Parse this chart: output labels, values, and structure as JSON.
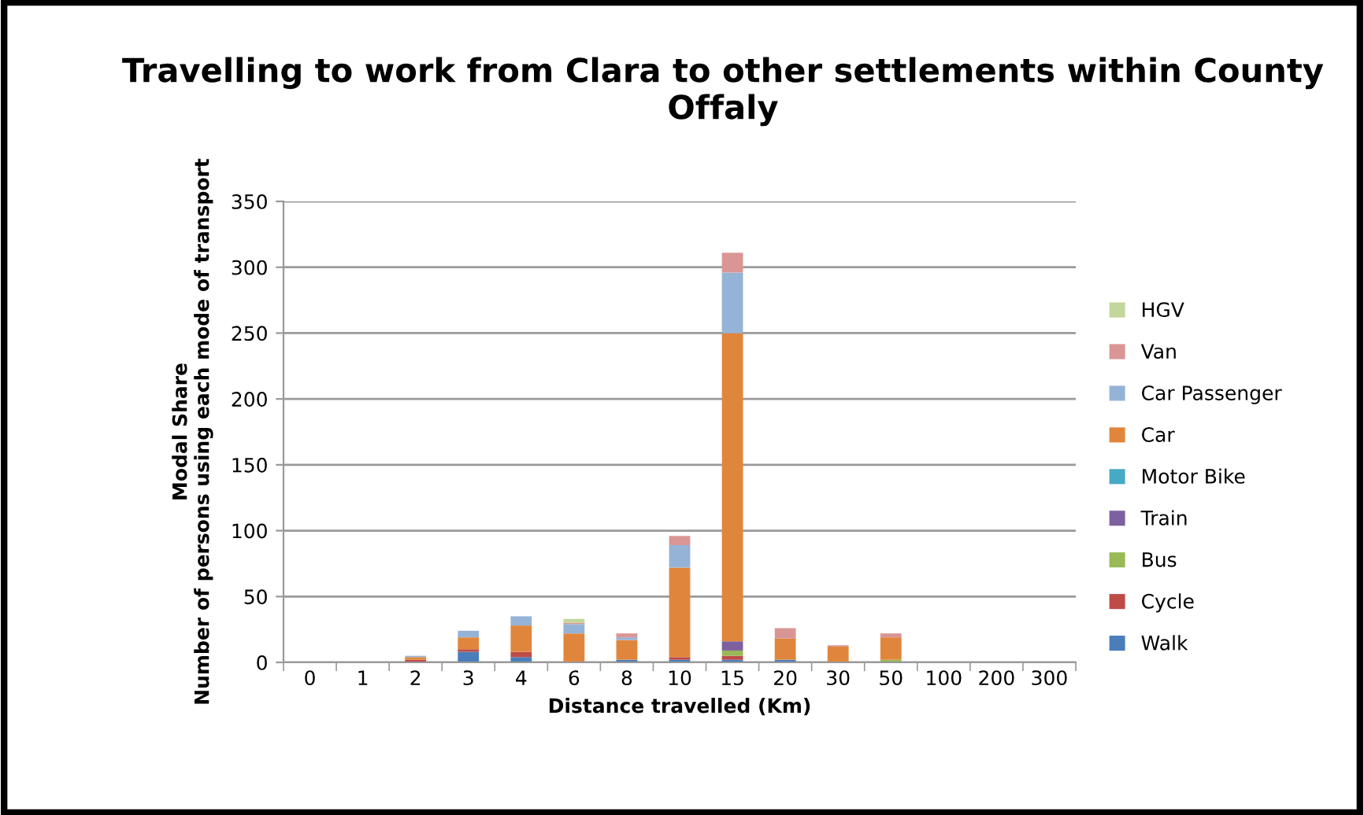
{
  "chart_data": {
    "type": "bar",
    "stacked": true,
    "title": "Travelling to work from Clara to other settlements within County Offaly",
    "xlabel": "Distance travelled (Km)",
    "ylabel": "Modal Share\nNumber of persons using each mode of transport",
    "categories": [
      "0",
      "1",
      "2",
      "3",
      "4",
      "6",
      "8",
      "10",
      "15",
      "20",
      "30",
      "50",
      "100",
      "200",
      "300"
    ],
    "series": [
      {
        "name": "Walk",
        "color": "#4a7ebb",
        "values": [
          0,
          0,
          0,
          8,
          4,
          0,
          2,
          2,
          2,
          2,
          0,
          0,
          0,
          0,
          0
        ]
      },
      {
        "name": "Cycle",
        "color": "#be4b48",
        "values": [
          0,
          0,
          2,
          2,
          4,
          0,
          0,
          2,
          3,
          0,
          0,
          0,
          0,
          0,
          0
        ]
      },
      {
        "name": "Bus",
        "color": "#98b954",
        "values": [
          0,
          0,
          0,
          0,
          0,
          0,
          0,
          0,
          4,
          0,
          0,
          2,
          0,
          0,
          0
        ]
      },
      {
        "name": "Train",
        "color": "#7d60a0",
        "values": [
          0,
          0,
          0,
          0,
          0,
          0,
          0,
          0,
          7,
          0,
          0,
          0,
          0,
          0,
          0
        ]
      },
      {
        "name": "Motor Bike",
        "color": "#46aac5",
        "values": [
          0,
          0,
          0,
          0,
          0,
          0,
          0,
          0,
          0,
          0,
          0,
          0,
          0,
          0,
          0
        ]
      },
      {
        "name": "Car",
        "color": "#e0863c",
        "values": [
          0,
          0,
          2,
          9,
          20,
          22,
          15,
          68,
          234,
          16,
          12,
          17,
          0,
          0,
          0
        ]
      },
      {
        "name": "Car Passenger",
        "color": "#95b3d7",
        "values": [
          0,
          0,
          1,
          5,
          7,
          7,
          2,
          17,
          46,
          0,
          0,
          0,
          0,
          0,
          0
        ]
      },
      {
        "name": "Van",
        "color": "#d99694",
        "values": [
          0,
          0,
          0,
          0,
          0,
          1,
          3,
          7,
          15,
          8,
          1,
          3,
          0,
          0,
          0
        ]
      },
      {
        "name": "HGV",
        "color": "#c3d69b",
        "values": [
          0,
          0,
          0,
          0,
          0,
          3,
          0,
          0,
          0,
          0,
          0,
          0,
          0,
          0,
          0
        ]
      }
    ],
    "ylim": [
      0,
      350
    ],
    "yticks": [
      0,
      50,
      100,
      150,
      200,
      250,
      300,
      350
    ],
    "grid": "y",
    "legend": "right"
  }
}
